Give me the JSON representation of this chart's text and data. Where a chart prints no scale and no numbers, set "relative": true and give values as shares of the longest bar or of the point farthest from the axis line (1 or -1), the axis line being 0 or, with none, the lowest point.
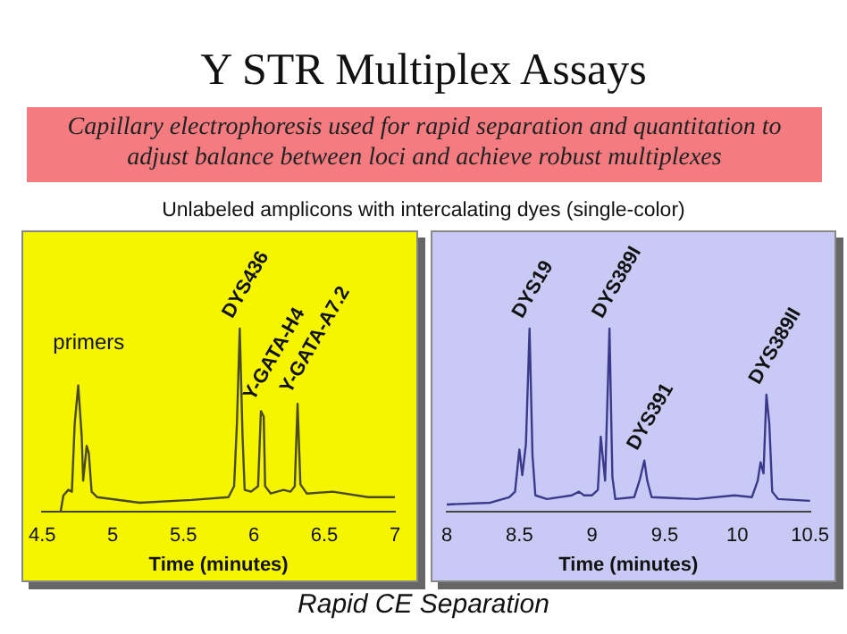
{
  "chart_data": [
    {
      "type": "line",
      "title": "Y STR Multiplex Assays",
      "subtitle": "Capillary electrophoresis used for rapid separation and quantitation to adjust balance between loci and achieve robust multiplexes",
      "relative": true,
      "marker": "none",
      "xlabel": "Time (minutes)",
      "xlim": [
        4.5,
        7
      ],
      "xticks": [
        4.5,
        5,
        5.5,
        6,
        6.5,
        7
      ],
      "annotations": [
        "Unlabeled amplicons with intercalating dyes (single-color)",
        "Rapid CE Separation",
        "primers",
        {
          "text": "DYS436",
          "x": 5.9,
          "y": 1
        },
        {
          "text": "Y-GATA-H4",
          "x": 6.05,
          "y": 0.55
        },
        {
          "text": "Y-GATA-A7.2",
          "x": 6.31,
          "y": 0.59
        }
      ],
      "series": [
        {
          "color": "#4a4a1c",
          "x": [
            4.63,
            4.65,
            4.685,
            4.71,
            4.73,
            4.755,
            4.78,
            4.79,
            4.815,
            4.83,
            4.85,
            4.89,
            5.19,
            5.56,
            5.82,
            5.86,
            5.88,
            5.9,
            5.92,
            5.935,
            5.98,
            6.03,
            6.05,
            6.07,
            6.08,
            6.12,
            6.21,
            6.26,
            6.29,
            6.31,
            6.33,
            6.375,
            6.56,
            6.81,
            7.0
          ],
          "values": [
            0,
            0.09,
            0.12,
            0.11,
            0.48,
            0.69,
            0.41,
            0.17,
            0.36,
            0.32,
            0.11,
            0.08,
            0.05,
            0.065,
            0.08,
            0.14,
            0.48,
            1,
            0.41,
            0.12,
            0.11,
            0.14,
            0.55,
            0.52,
            0.14,
            0.1,
            0.12,
            0.11,
            0.14,
            0.59,
            0.15,
            0.1,
            0.11,
            0.08,
            0.08
          ]
        }
      ]
    },
    {
      "type": "line",
      "relative": true,
      "marker": "none",
      "xlabel": "Time (minutes)",
      "xlim": [
        8,
        10.5
      ],
      "xticks": [
        8,
        8.5,
        9,
        9.5,
        10,
        10.5
      ],
      "annotations": [
        {
          "text": "DYS19",
          "x": 8.57,
          "y": 1
        },
        {
          "text": "DYS389I",
          "x": 9.12,
          "y": 1
        },
        {
          "text": "DYS391",
          "x": 9.36,
          "y": 0.28
        },
        {
          "text": "DYS389II",
          "x": 10.2,
          "y": 0.64
        }
      ],
      "series": [
        {
          "color": "#3a3a8c",
          "x": [
            8.0,
            8.3,
            8.43,
            8.47,
            8.5,
            8.52,
            8.545,
            8.57,
            8.59,
            8.61,
            8.69,
            8.86,
            8.91,
            8.945,
            9.0,
            9.04,
            9.06,
            9.09,
            9.12,
            9.14,
            9.16,
            9.29,
            9.33,
            9.36,
            9.38,
            9.41,
            9.72,
            9.98,
            10.1,
            10.14,
            10.16,
            10.18,
            10.2,
            10.22,
            10.24,
            10.28,
            10.5
          ],
          "values": [
            0.04,
            0.05,
            0.08,
            0.11,
            0.34,
            0.2,
            0.37,
            1,
            0.31,
            0.09,
            0.07,
            0.09,
            0.11,
            0.09,
            0.09,
            0.12,
            0.41,
            0.17,
            1,
            0.19,
            0.07,
            0.08,
            0.18,
            0.28,
            0.17,
            0.08,
            0.07,
            0.09,
            0.08,
            0.17,
            0.27,
            0.21,
            0.64,
            0.48,
            0.11,
            0.07,
            0.06
          ]
        }
      ]
    }
  ]
}
